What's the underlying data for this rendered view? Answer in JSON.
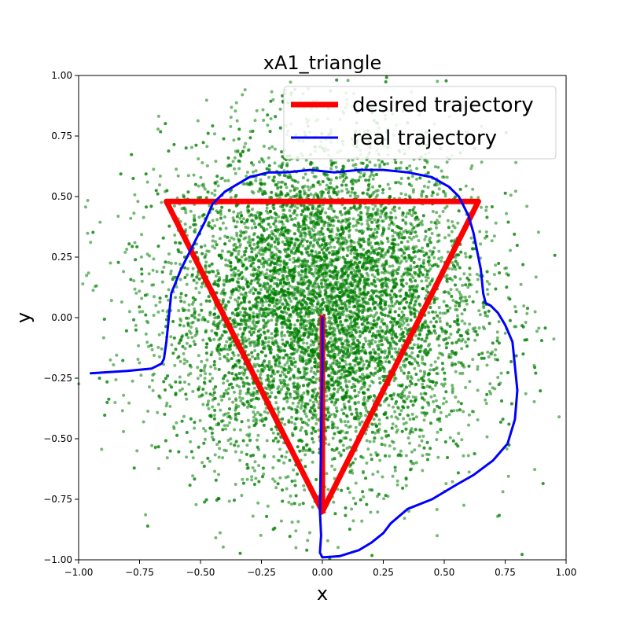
{
  "chart_data": {
    "type": "scatter",
    "title": "xA1_triangle",
    "xlabel": "x",
    "ylabel": "y",
    "xlim": [
      -1.0,
      1.0
    ],
    "ylim": [
      -1.0,
      1.0
    ],
    "x_ticks": [
      "−1.00",
      "−0.75",
      "−0.50",
      "−0.25",
      "0.00",
      "0.25",
      "0.50",
      "0.75",
      "1.00"
    ],
    "y_ticks": [
      "−1.00",
      "−0.75",
      "−0.50",
      "−0.25",
      "0.00",
      "0.25",
      "0.50",
      "0.75",
      "1.00"
    ],
    "grid": false,
    "legend_position": "top-right",
    "scatter": {
      "color": "#008000",
      "count": 9000,
      "distribution": "gaussian",
      "center": [
        0.0,
        0.05
      ],
      "std": [
        0.32,
        0.34
      ]
    },
    "series": [
      {
        "name": "desired trajectory",
        "color": "#ff0000",
        "points": [
          [
            0.0,
            0.0
          ],
          [
            0.0,
            -0.8
          ],
          [
            0.64,
            0.48
          ],
          [
            -0.64,
            0.48
          ],
          [
            0.0,
            -0.8
          ]
        ]
      },
      {
        "name": "real trajectory",
        "color": "#0000ff",
        "points": [
          [
            -0.95,
            -0.23
          ],
          [
            -0.8,
            -0.22
          ],
          [
            -0.7,
            -0.21
          ],
          [
            -0.66,
            -0.19
          ],
          [
            -0.65,
            -0.17
          ],
          [
            -0.64,
            -0.1
          ],
          [
            -0.63,
            0.0
          ],
          [
            -0.62,
            0.1
          ],
          [
            -0.58,
            0.2
          ],
          [
            -0.52,
            0.32
          ],
          [
            -0.48,
            0.4
          ],
          [
            -0.45,
            0.47
          ],
          [
            -0.4,
            0.52
          ],
          [
            -0.35,
            0.55
          ],
          [
            -0.3,
            0.58
          ],
          [
            -0.22,
            0.6
          ],
          [
            -0.15,
            0.6
          ],
          [
            -0.05,
            0.61
          ],
          [
            0.05,
            0.6
          ],
          [
            0.15,
            0.61
          ],
          [
            0.25,
            0.61
          ],
          [
            0.35,
            0.6
          ],
          [
            0.45,
            0.58
          ],
          [
            0.52,
            0.54
          ],
          [
            0.56,
            0.5
          ],
          [
            0.6,
            0.42
          ],
          [
            0.62,
            0.35
          ],
          [
            0.65,
            0.2
          ],
          [
            0.66,
            0.1
          ],
          [
            0.67,
            0.06
          ],
          [
            0.69,
            0.05
          ],
          [
            0.72,
            0.02
          ],
          [
            0.75,
            -0.03
          ],
          [
            0.78,
            -0.1
          ],
          [
            0.79,
            -0.2
          ],
          [
            0.8,
            -0.3
          ],
          [
            0.79,
            -0.42
          ],
          [
            0.76,
            -0.52
          ],
          [
            0.7,
            -0.59
          ],
          [
            0.62,
            -0.65
          ],
          [
            0.55,
            -0.69
          ],
          [
            0.45,
            -0.75
          ],
          [
            0.35,
            -0.79
          ],
          [
            0.28,
            -0.85
          ],
          [
            0.25,
            -0.89
          ],
          [
            0.2,
            -0.93
          ],
          [
            0.15,
            -0.96
          ],
          [
            0.07,
            -0.985
          ],
          [
            0.0,
            -0.99
          ],
          [
            -0.01,
            -0.97
          ],
          [
            -0.005,
            -0.9
          ],
          [
            -0.01,
            -0.8
          ],
          [
            -0.005,
            -0.5
          ],
          [
            0.0,
            -0.2
          ],
          [
            0.0,
            0.0
          ]
        ]
      }
    ]
  }
}
